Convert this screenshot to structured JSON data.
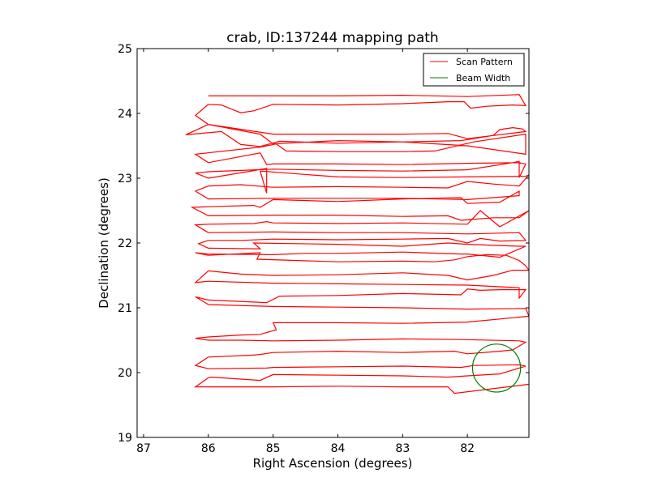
{
  "chart_data": {
    "type": "line",
    "title": "crab, ID:137244 mapping path",
    "xlabel": "Right Ascension (degrees)",
    "ylabel": "Declination (degrees)",
    "xlim": [
      87.1,
      81.05
    ],
    "ylim": [
      19,
      25
    ],
    "xticks": [
      87,
      86,
      85,
      84,
      83,
      82
    ],
    "yticks": [
      19,
      20,
      21,
      22,
      23,
      24,
      25
    ],
    "grid": false,
    "legend_position": "top-right",
    "series": [
      {
        "name": "Scan Pattern",
        "color": "#ff0000",
        "x": [
          86.0,
          85.0,
          84.0,
          83.0,
          82.0,
          81.2,
          81.1,
          81.3,
          81.5,
          81.7,
          81.95,
          82.05,
          82.3,
          83.0,
          84.0,
          85.0,
          85.3,
          85.5,
          85.8,
          86.0,
          86.2,
          86.0,
          85.0,
          84.0,
          83.0,
          82.3,
          82.0,
          81.1,
          81.15,
          81.3,
          81.5,
          81.6,
          82.1,
          83.0,
          84.0,
          84.9,
          85.2,
          85.5,
          85.8,
          86.35,
          86.0,
          85.2,
          85.0,
          84.0,
          83.0,
          82.0,
          81.1,
          81.1,
          81.9,
          82.5,
          83.0,
          84.0,
          84.8,
          84.95,
          85.2,
          86.2,
          86.0,
          85.2,
          85.1,
          85.0,
          84.0,
          83.0,
          82.0,
          81.2,
          81.1,
          81.2,
          81.2,
          81.3,
          82.0,
          83.0,
          84.0,
          85.0,
          85.5,
          86.0,
          86.2,
          86.0,
          85.1,
          85.1,
          85.2,
          84.0,
          83.0,
          82.0,
          81.1,
          81.05,
          81.2,
          81.6,
          82.0,
          82.3,
          83.0,
          84.0,
          85.0,
          85.5,
          86.0,
          86.2,
          86.0,
          85.0,
          84.0,
          83.0,
          82.0,
          81.2,
          81.2,
          81.5,
          82.0,
          82.1,
          83.0,
          84.0,
          85.0,
          85.2,
          85.3,
          86.0,
          86.25,
          86.0,
          85.0,
          84.0,
          83.0,
          82.3,
          82.1,
          81.6,
          81.2,
          81.05,
          81.5,
          81.8,
          82.0,
          83.0,
          84.0,
          85.0,
          85.1,
          85.3,
          86.0,
          86.2,
          86.0,
          85.0,
          84.0,
          83.0,
          82.0,
          81.2,
          81.1,
          81.5,
          81.8,
          82.0,
          82.3,
          83.0,
          84.0,
          85.0,
          85.5,
          86.0,
          86.15,
          86.0,
          85.2,
          85.3,
          84.0,
          83.0,
          82.3,
          82.0,
          81.2,
          81.1,
          81.5,
          81.7,
          82.0,
          82.1,
          83.0,
          84.0,
          84.5,
          85.0,
          86.0,
          86.2,
          86.0,
          85.2,
          85.25,
          84.0,
          83.0,
          82.5,
          82.2,
          82.0,
          81.7,
          81.4,
          81.2,
          81.1,
          81.05,
          81.2,
          81.3,
          81.6,
          82.0,
          82.3,
          83.0,
          84.0,
          85.0,
          85.5,
          86.0,
          86.2,
          86.0,
          85.0,
          84.0,
          83.0,
          82.0,
          81.2,
          81.2,
          81.1,
          81.3,
          81.5,
          81.8,
          82.0,
          82.1,
          83.0,
          84.0,
          84.9,
          85.1,
          86.0,
          86.2,
          86.0,
          85.0,
          84.0,
          83.0,
          82.0,
          81.1,
          81.05,
          82.0,
          83.0,
          84.0,
          85.0,
          84.95,
          85.2,
          85.5,
          86.0,
          86.2,
          86.0,
          85.5,
          85.0,
          84.0,
          83.0,
          82.1,
          81.2,
          81.1,
          81.3,
          81.5,
          82.0,
          82.2,
          83.0,
          84.0,
          85.0,
          85.2,
          85.3,
          86.0,
          86.2,
          86.0,
          85.1,
          85.0,
          84.0,
          83.0,
          82.1,
          81.9,
          81.2,
          81.1,
          81.5,
          82.0,
          82.3,
          83.0,
          84.0,
          85.0,
          85.2,
          85.95,
          86.0,
          86.2,
          86.0,
          85.0,
          84.0,
          83.0,
          82.3,
          82.2,
          81.05
        ],
        "y": [
          24.27,
          24.27,
          24.27,
          24.28,
          24.26,
          24.29,
          24.12,
          24.13,
          24.12,
          24.11,
          24.08,
          24.18,
          24.18,
          24.15,
          24.13,
          24.14,
          24.04,
          24.01,
          24.13,
          24.14,
          23.97,
          23.83,
          23.68,
          23.68,
          23.68,
          23.69,
          23.61,
          23.72,
          23.76,
          23.78,
          23.75,
          23.66,
          23.58,
          23.56,
          23.54,
          23.57,
          23.49,
          23.52,
          23.72,
          23.67,
          23.83,
          23.68,
          23.53,
          23.58,
          23.56,
          23.5,
          23.37,
          23.68,
          23.56,
          23.42,
          23.41,
          23.41,
          23.42,
          23.53,
          23.48,
          23.37,
          23.24,
          23.39,
          23.21,
          23.22,
          23.22,
          23.21,
          23.23,
          23.24,
          23.22,
          23.01,
          23.26,
          23.24,
          23.13,
          23.11,
          23.12,
          23.14,
          23.12,
          23.1,
          23.08,
          23.0,
          23.15,
          22.77,
          23.11,
          23.02,
          23.01,
          23.02,
          23.03,
          23.05,
          22.88,
          22.91,
          22.95,
          22.85,
          22.86,
          22.87,
          22.86,
          22.9,
          22.88,
          22.8,
          22.68,
          22.69,
          22.69,
          22.69,
          22.67,
          22.73,
          22.8,
          22.63,
          22.61,
          22.7,
          22.68,
          22.64,
          22.67,
          22.55,
          22.58,
          22.56,
          22.55,
          22.42,
          22.43,
          22.43,
          22.41,
          22.42,
          22.35,
          22.39,
          22.39,
          22.5,
          22.25,
          22.5,
          22.29,
          22.31,
          22.3,
          22.31,
          22.33,
          22.3,
          22.29,
          22.28,
          22.16,
          22.17,
          22.16,
          22.16,
          22.14,
          22.16,
          22.04,
          22.03,
          22.07,
          22.0,
          22.07,
          22.06,
          22.05,
          22.06,
          22.04,
          22.04,
          21.99,
          21.92,
          21.91,
          22.0,
          21.98,
          21.95,
          22.0,
          21.98,
          21.95,
          21.95,
          21.78,
          21.8,
          21.83,
          21.83,
          21.86,
          21.84,
          21.84,
          21.82,
          21.83,
          21.85,
          21.81,
          21.85,
          21.75,
          21.71,
          21.72,
          21.71,
          21.74,
          21.79,
          21.82,
          21.81,
          21.73,
          21.65,
          21.58,
          21.58,
          21.58,
          21.5,
          21.43,
          21.5,
          21.54,
          21.51,
          21.5,
          21.52,
          21.57,
          21.39,
          21.41,
          21.38,
          21.37,
          21.36,
          21.35,
          21.31,
          21.15,
          21.28,
          21.28,
          21.28,
          21.27,
          21.29,
          21.2,
          21.22,
          21.19,
          21.18,
          21.08,
          21.12,
          21.17,
          21.05,
          21.02,
          21.01,
          21.0,
          20.98,
          20.99,
          20.87,
          20.78,
          20.76,
          20.77,
          20.77,
          20.66,
          20.59,
          20.58,
          20.55,
          20.53,
          20.5,
          20.5,
          20.49,
          20.5,
          20.52,
          20.51,
          20.49,
          20.47,
          20.35,
          20.33,
          20.29,
          20.33,
          20.31,
          20.33,
          20.31,
          20.28,
          20.27,
          20.24,
          20.11,
          20.06,
          20.07,
          20.08,
          20.09,
          20.1,
          20.08,
          20.11,
          20.12,
          20.1,
          19.98,
          19.95,
          19.93,
          19.95,
          19.96,
          19.97,
          19.88,
          19.93,
          19.92,
          19.78,
          19.78,
          19.78,
          19.79,
          19.78,
          19.78,
          19.68,
          19.82
        ]
      },
      {
        "name": "Beam Width",
        "color": "#008000",
        "center": [
          81.55,
          20.07
        ],
        "radius_deg": 0.37
      }
    ]
  }
}
